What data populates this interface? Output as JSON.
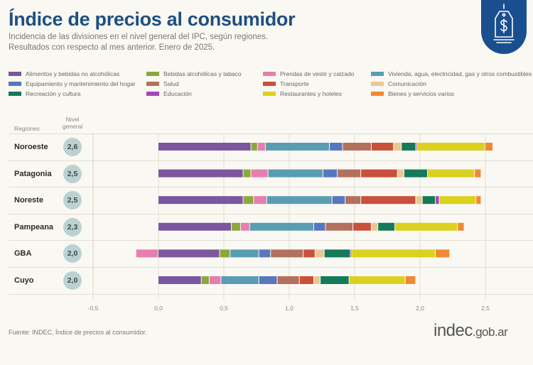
{
  "header": {
    "title": "Índice de precios al consumidor",
    "subtitle_line1": "Incidencia de las divisiones en el nivel general del IPC, según regiones.",
    "subtitle_line2": "Resultados con respecto al mes anterior. Enero de 2025.",
    "badge_icon": "price-tag-dollar-icon"
  },
  "table_headers": {
    "regions": "Regiones",
    "level_line1": "Nivel",
    "level_line2": "general"
  },
  "footer": {
    "source": "Fuente: INDEC, Índice de precios al consumidor.",
    "logo_main": "indec",
    "logo_domain": ".gob.ar"
  },
  "chart_data": {
    "type": "bar",
    "orientation": "horizontal",
    "stacked": true,
    "title": "Índice de precios al consumidor",
    "subtitle": "Incidencia de las divisiones en el nivel general del IPC, según regiones. Resultados con respecto al mes anterior. Enero de 2025.",
    "xlabel": "",
    "ylabel": "Regiones",
    "xlim": [
      -0.5,
      2.7
    ],
    "xticks": [
      -0.5,
      0.0,
      0.5,
      1.0,
      1.5,
      2.0,
      2.5
    ],
    "xtick_labels": [
      "-0,5",
      "0,0",
      "0,5",
      "1,0",
      "1,5",
      "2,0",
      "2,5"
    ],
    "grid": true,
    "legend_position": "top",
    "categories": [
      "Noroeste",
      "Patagonia",
      "Noreste",
      "Pampeana",
      "GBA",
      "Cuyo"
    ],
    "nivel_general": [
      "2,6",
      "2,5",
      "2,5",
      "2,3",
      "2,0",
      "2,0"
    ],
    "series": [
      {
        "name": "Alimentos y bebidas no alcohólicas",
        "color": "#7d56a0",
        "values": [
          0.71,
          0.65,
          0.65,
          0.56,
          0.47,
          0.33
        ]
      },
      {
        "name": "Bebidas alcohólicas y tabaco",
        "color": "#8aa93c",
        "values": [
          0.05,
          0.06,
          0.08,
          0.07,
          0.08,
          0.06
        ]
      },
      {
        "name": "Prendas de vestir y calzado",
        "color": "#e77eaf",
        "values": [
          0.06,
          0.13,
          0.1,
          0.07,
          -0.17,
          0.09
        ]
      },
      {
        "name": "Vivienda, agua, electricidad, gas y otros combustibles",
        "color": "#5a9db3",
        "values": [
          0.49,
          0.42,
          0.5,
          0.49,
          0.22,
          0.29
        ]
      },
      {
        "name": "Equipamiento y mantenimiento del hogar",
        "color": "#5877bd",
        "values": [
          0.1,
          0.11,
          0.1,
          0.09,
          0.09,
          0.14
        ]
      },
      {
        "name": "Salud",
        "color": "#b4705f",
        "values": [
          0.22,
          0.18,
          0.12,
          0.21,
          0.25,
          0.17
        ]
      },
      {
        "name": "Transporte",
        "color": "#c9503c",
        "values": [
          0.17,
          0.28,
          0.42,
          0.14,
          0.09,
          0.11
        ]
      },
      {
        "name": "Comunicación",
        "color": "#ebc88f",
        "values": [
          0.06,
          0.05,
          0.05,
          0.05,
          0.07,
          0.05
        ]
      },
      {
        "name": "Recreación y cultura",
        "color": "#147a5a",
        "values": [
          0.11,
          0.18,
          0.1,
          0.13,
          0.2,
          0.22
        ]
      },
      {
        "name": "Educación",
        "color": "#a648b8",
        "values": [
          0.01,
          0.0,
          0.03,
          0.0,
          0.01,
          0.0
        ]
      },
      {
        "name": "Restaurantes y hoteles",
        "color": "#dbd11f",
        "values": [
          0.52,
          0.36,
          0.28,
          0.48,
          0.64,
          0.43
        ]
      },
      {
        "name": "Bienes y servicios varios",
        "color": "#ee8a36",
        "values": [
          0.06,
          0.05,
          0.04,
          0.05,
          0.11,
          0.08
        ]
      }
    ]
  }
}
